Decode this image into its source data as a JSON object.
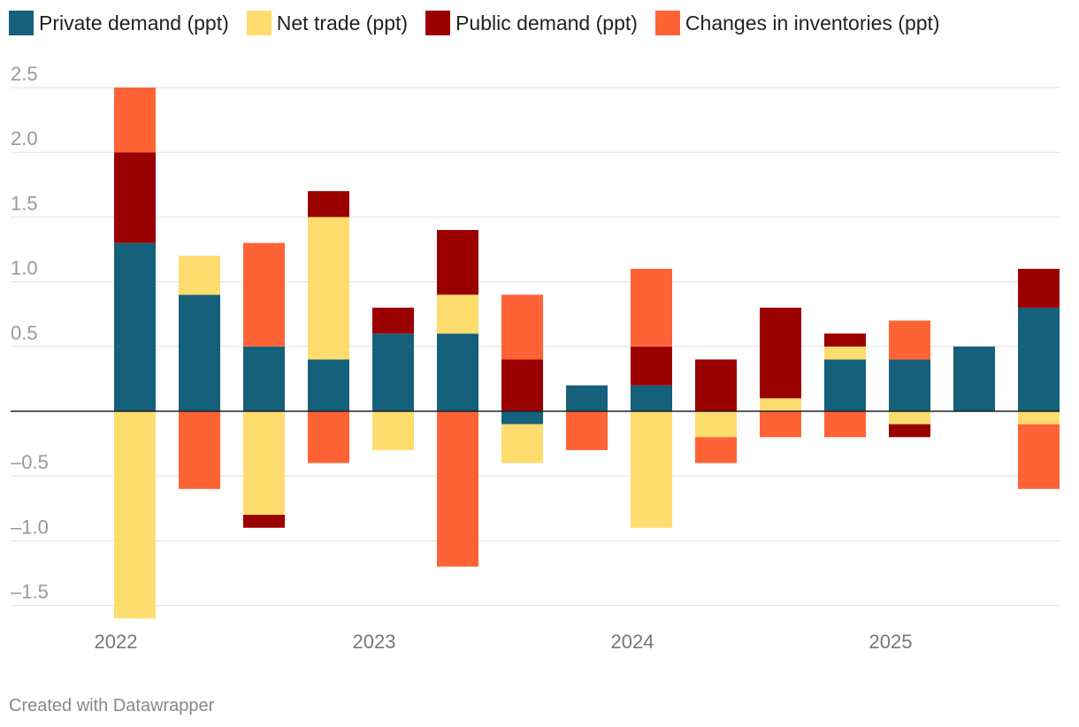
{
  "chart_data": {
    "type": "bar",
    "stacked": true,
    "title": "",
    "xlabel": "",
    "ylabel": "",
    "ylim": [
      -1.6,
      2.5
    ],
    "y_ticks": [
      {
        "value": 2.5,
        "label": "2.5"
      },
      {
        "value": 2.0,
        "label": "2.0"
      },
      {
        "value": 1.5,
        "label": "1.5"
      },
      {
        "value": 1.0,
        "label": "1.0"
      },
      {
        "value": 0.5,
        "label": "0.5"
      },
      {
        "value": -0.5,
        "label": "–0.5"
      },
      {
        "value": -1.0,
        "label": "–1.0"
      },
      {
        "value": -1.5,
        "label": "–1.5"
      }
    ],
    "x_ticks": [
      {
        "index": 0,
        "label": "2022"
      },
      {
        "index": 4,
        "label": "2023"
      },
      {
        "index": 8,
        "label": "2024"
      },
      {
        "index": 12,
        "label": "2025"
      }
    ],
    "categories": [
      "Q1 2022",
      "Q2 2022",
      "Q3 2022",
      "Q4 2022",
      "Q1 2023",
      "Q2 2023",
      "Q3 2023",
      "Q4 2023",
      "Q1 2024",
      "Q2 2024",
      "Q3 2024",
      "Q4 2024",
      "Q1 2025",
      "Q2 2025",
      "Q3 2025",
      "Q4 2025"
    ],
    "series": [
      {
        "name": "Private demand (ppt)",
        "color": "#15607a",
        "values": [
          1.3,
          0.9,
          0.5,
          0.4,
          0.6,
          0.6,
          -0.1,
          0.2,
          0.2,
          0.0,
          0.0,
          0.4,
          0.4,
          0.5,
          0.8,
          0.0
        ]
      },
      {
        "name": "Net trade (ppt)",
        "color": "#ffdc6e",
        "values": [
          -1.6,
          0.3,
          -0.8,
          1.1,
          -0.3,
          0.3,
          -0.3,
          0.0,
          -0.9,
          -0.2,
          0.1,
          0.1,
          -0.1,
          0.0,
          -0.1,
          0.0
        ]
      },
      {
        "name": "Public demand (ppt)",
        "color": "#9b0000",
        "values": [
          0.7,
          0.0,
          -0.1,
          0.2,
          0.2,
          0.5,
          0.4,
          0.0,
          0.3,
          0.4,
          0.7,
          0.1,
          -0.1,
          0.0,
          0.3,
          0.0
        ]
      },
      {
        "name": "Changes in inventories (ppt)",
        "color": "#ff6335",
        "values": [
          0.5,
          -0.6,
          0.8,
          -0.4,
          0.0,
          -1.2,
          0.5,
          -0.3,
          0.6,
          -0.2,
          -0.2,
          -0.2,
          0.3,
          0.0,
          -0.5,
          0.0
        ]
      }
    ],
    "grid": true,
    "legend": "top-left"
  },
  "footer": {
    "credit": "Created with Datawrapper"
  }
}
